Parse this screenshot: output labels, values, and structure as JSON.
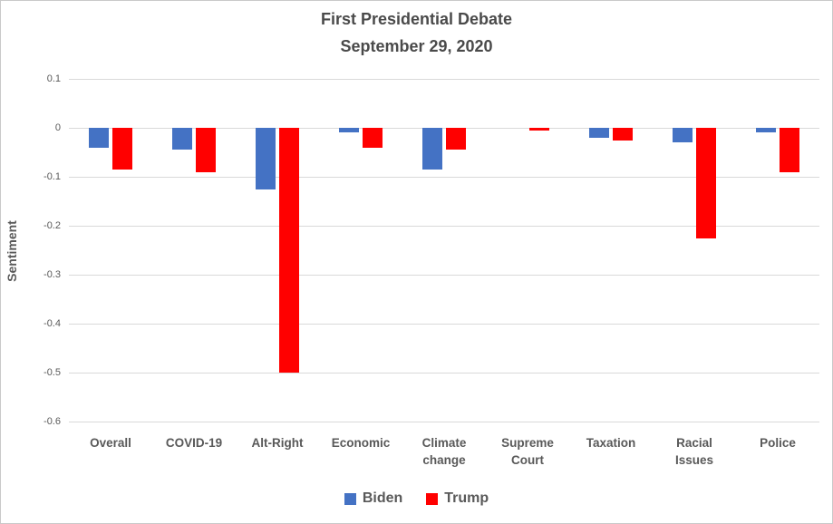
{
  "window": {
    "background": "#ffffff",
    "border_color": "#c9c9c9"
  },
  "chart_data": {
    "type": "bar",
    "title": "First Presidential Debate",
    "subtitle": "September 29, 2020",
    "xlabel": "",
    "ylabel": "Sentiment",
    "categories": [
      "Overall",
      "COVID-19",
      "Alt-Right",
      "Economic",
      "Climate change",
      "Supreme Court",
      "Taxation",
      "Racial Issues",
      "Police"
    ],
    "series": [
      {
        "name": "Biden",
        "color": "#4472C4",
        "values": [
          -0.04,
          -0.045,
          -0.125,
          -0.01,
          -0.085,
          0,
          -0.02,
          -0.03,
          -0.01
        ]
      },
      {
        "name": "Trump",
        "color": "#FF0000",
        "values": [
          -0.085,
          -0.09,
          -0.5,
          -0.04,
          -0.045,
          -0.005,
          -0.025,
          -0.225,
          -0.09
        ]
      }
    ],
    "ylim": [
      -0.6,
      0.1
    ],
    "ytick_labels": [
      "0.1",
      "0",
      "-0.1",
      "-0.2",
      "-0.3",
      "-0.4",
      "-0.5",
      "-0.6"
    ],
    "grid": true,
    "gridline_color": "#d9d9d9",
    "legend_position": "bottom",
    "text_color": "#595959"
  }
}
